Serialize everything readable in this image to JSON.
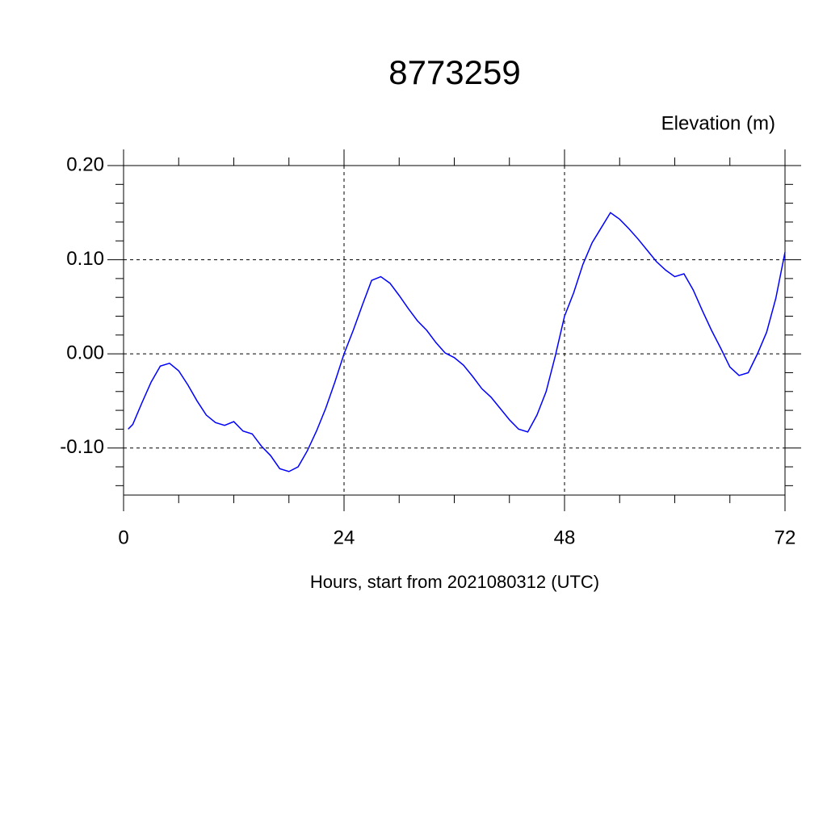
{
  "chart_data": {
    "type": "line",
    "title": "8773259",
    "subtitle": "Elevation (m)",
    "x_label": "Hours, start from 2021080312 (UTC)",
    "xlim": [
      0,
      72
    ],
    "xticks": [
      0,
      24,
      48,
      72
    ],
    "ylim": [
      -0.15,
      0.2
    ],
    "yticks": [
      {
        "value": -0.1,
        "label": "-0.10"
      },
      {
        "value": 0,
        "label": "0.00"
      },
      {
        "value": 0.1,
        "label": "0.10"
      },
      {
        "value": 0.2,
        "label": "0.20"
      }
    ],
    "grid": true,
    "x": [
      0.5,
      1,
      2,
      3,
      4,
      5,
      6,
      7,
      8,
      9,
      10,
      11,
      12,
      13,
      14,
      15,
      16,
      17,
      18,
      19,
      20,
      21,
      22,
      23,
      24,
      25,
      26,
      27,
      28,
      29,
      30,
      31,
      32,
      33,
      34,
      35,
      36,
      37,
      38,
      39,
      40,
      41,
      42,
      43,
      44,
      45,
      46,
      47,
      48,
      49,
      50,
      51,
      52,
      53,
      54,
      55,
      56,
      57,
      58,
      59,
      60,
      61,
      62,
      63,
      64,
      65,
      66,
      67,
      68,
      69,
      70,
      71,
      72
    ],
    "series": [
      {
        "name": "Elevation",
        "color": "#0000ff",
        "values": [
          -0.08,
          -0.075,
          -0.052,
          -0.03,
          -0.013,
          -0.01,
          -0.018,
          -0.033,
          -0.05,
          -0.065,
          -0.073,
          -0.076,
          -0.072,
          -0.082,
          -0.085,
          -0.098,
          -0.108,
          -0.122,
          -0.125,
          -0.12,
          -0.103,
          -0.082,
          -0.058,
          -0.03,
          0.0,
          0.025,
          0.052,
          0.078,
          0.082,
          0.075,
          0.062,
          0.048,
          0.035,
          0.025,
          0.012,
          0.001,
          -0.004,
          -0.012,
          -0.024,
          -0.037,
          -0.046,
          -0.058,
          -0.07,
          -0.08,
          -0.083,
          -0.065,
          -0.04,
          -0.002,
          0.04,
          0.065,
          0.095,
          0.118,
          0.134,
          0.15,
          0.143,
          0.133,
          0.122,
          0.11,
          0.098,
          0.089,
          0.082,
          0.085,
          0.068,
          0.046,
          0.025,
          0.006,
          -0.014,
          -0.023,
          -0.02,
          0.0,
          0.023,
          0.059,
          0.108
        ]
      }
    ]
  }
}
